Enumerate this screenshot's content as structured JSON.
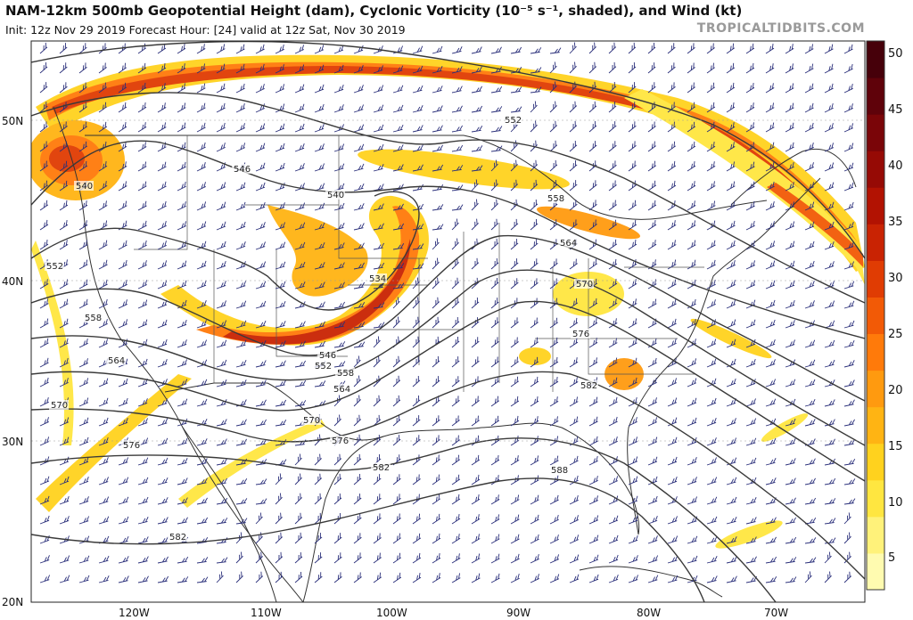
{
  "header": {
    "title": "NAM-12km 500mb Geopotential Height (dam), Cyclonic Vorticity (10⁻⁵ s⁻¹, shaded), and Wind (kt)",
    "subtitle": "Init: 12z Nov 29 2019   Forecast Hour: [24]   valid at 12z Sat, Nov 30 2019",
    "brand": "TROPICALTIDBITS.COM"
  },
  "map": {
    "lat_labels": [
      "50N",
      "40N",
      "30N",
      "20N"
    ],
    "lon_labels": [
      "120W",
      "110W",
      "100W",
      "90W",
      "80W",
      "70W"
    ],
    "contour_labels": [
      "540",
      "546",
      "540",
      "552",
      "552",
      "558",
      "534",
      "546",
      "552",
      "558",
      "564",
      "564",
      "570",
      "570",
      "576",
      "576",
      "582",
      "582",
      "588",
      "570",
      "576",
      "582",
      "558",
      "564"
    ],
    "colors": {
      "ocean": "#ffffff",
      "borders": "#333333",
      "contours": "#3a3a3a",
      "barbs": "#2a2f7a"
    }
  },
  "colorbar": {
    "ticks": [
      "5",
      "10",
      "15",
      "20",
      "25",
      "30",
      "35",
      "40",
      "45",
      "50"
    ],
    "colors": [
      "#fffbb0",
      "#fff27a",
      "#ffe640",
      "#ffd21e",
      "#ffb413",
      "#ff9a0f",
      "#ff7a0a",
      "#f25a06",
      "#e03c03",
      "#c92303",
      "#b21202",
      "#960a05",
      "#7a0508",
      "#5f020a",
      "#46000a"
    ]
  }
}
